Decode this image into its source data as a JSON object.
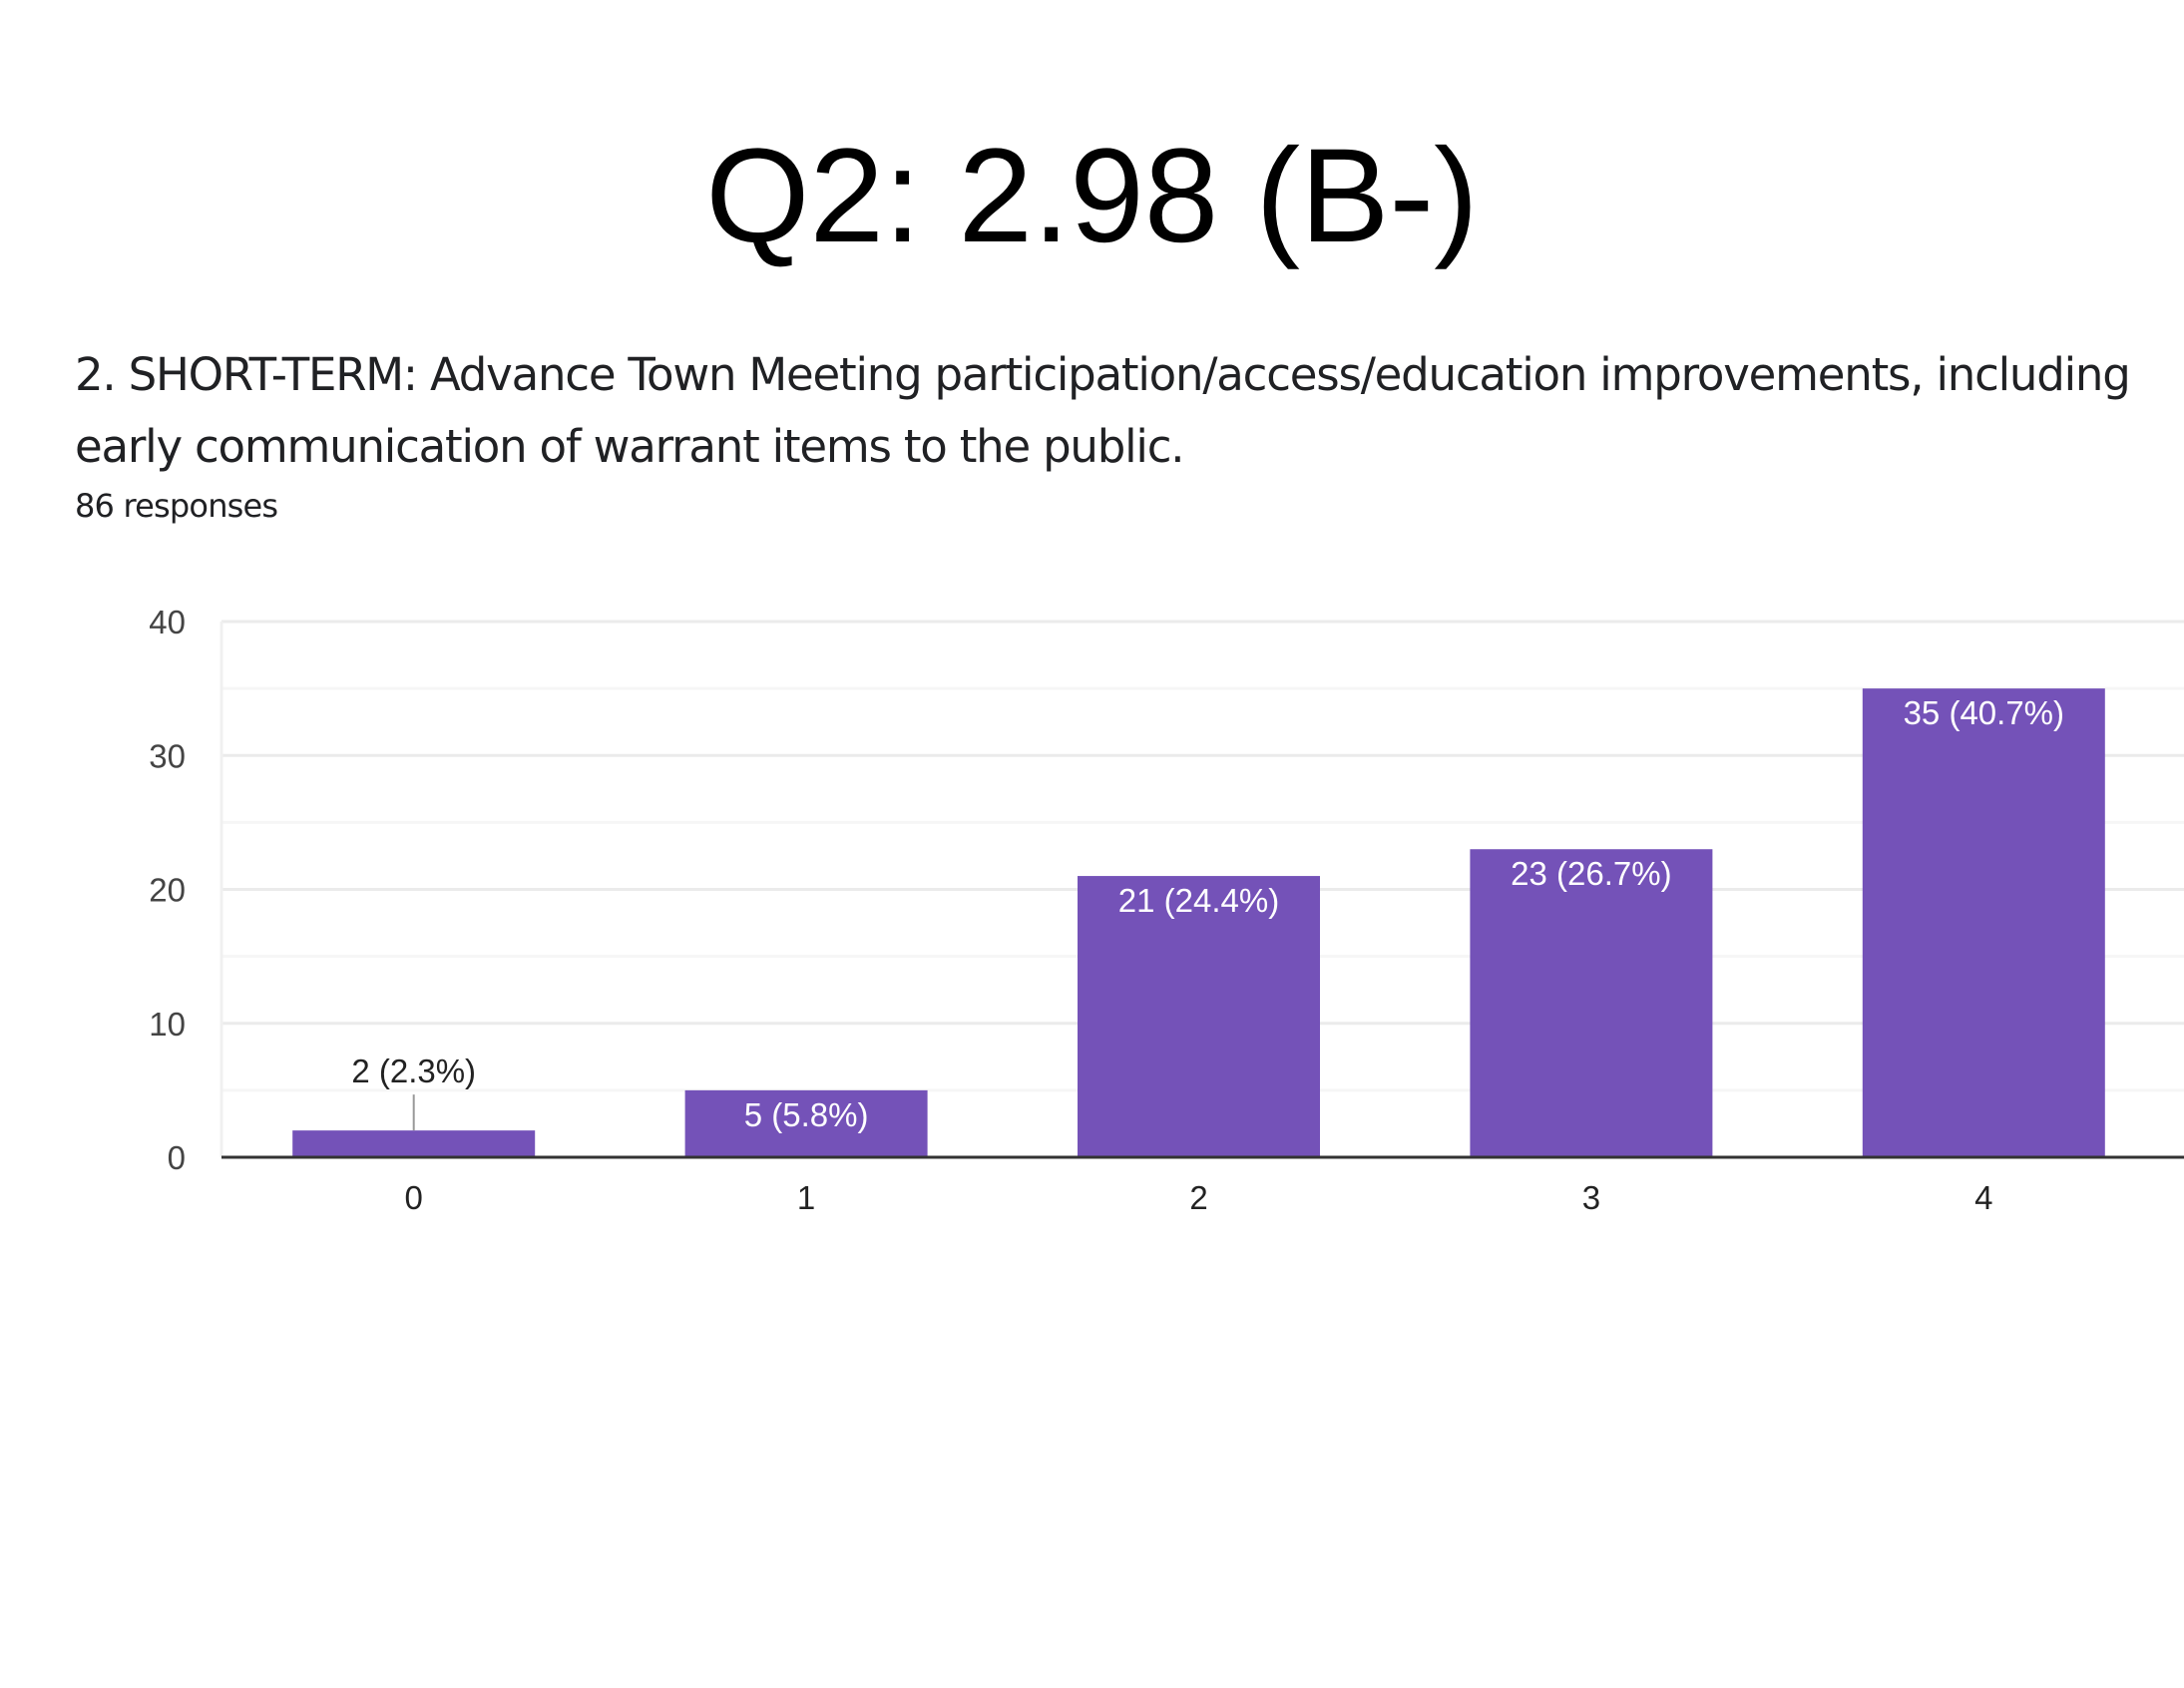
{
  "header": {
    "title": "Q2: 2.98 (B-)",
    "question": "2. SHORT-TERM: Advance Town Meeting participation/access/education improvements, including early communication of warrant items to the public.",
    "responses": "86 responses"
  },
  "colors": {
    "bar": "#7452b8",
    "grid": "#eeeeee",
    "axis": "#333333"
  },
  "chart_data": {
    "type": "bar",
    "title": "",
    "xlabel": "",
    "ylabel": "",
    "categories": [
      "0",
      "1",
      "2",
      "3",
      "4"
    ],
    "values": [
      2,
      5,
      21,
      23,
      35
    ],
    "data_labels": [
      "2 (2.3%)",
      "5 (5.8%)",
      "21 (24.4%)",
      "23 (26.7%)",
      "35 (40.7%)"
    ],
    "ylim": [
      0,
      40
    ],
    "yticks": [
      "0",
      "10",
      "20",
      "30",
      "40"
    ],
    "grid": true
  }
}
